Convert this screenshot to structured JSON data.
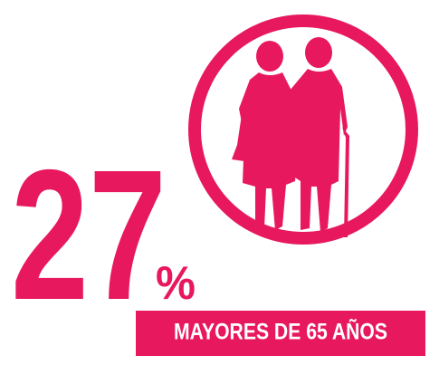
{
  "stat": {
    "number": "27",
    "unit": "%",
    "label": "MAYORES DE 65 AÑOS"
  }
}
